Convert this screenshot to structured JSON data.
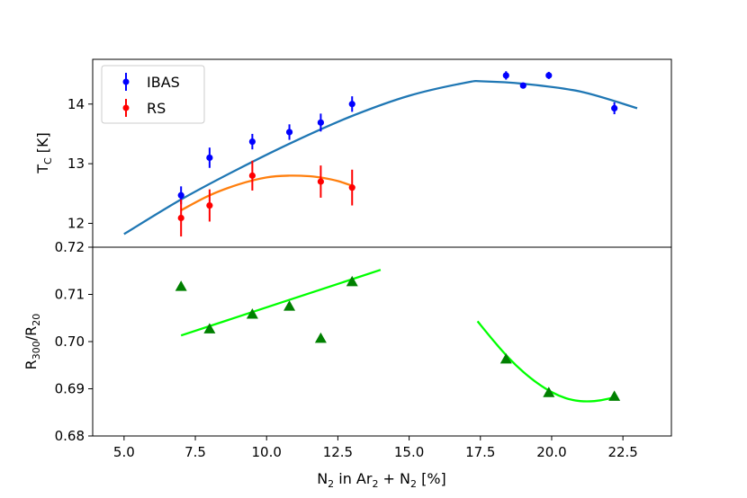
{
  "chart_data": [
    {
      "type": "scatter",
      "panel": "top",
      "ylabel": "T_C [K]",
      "ylabel_main": "T",
      "ylabel_sub": "C",
      "ylabel_unit": " [K]",
      "xlim": [
        3.9,
        24.2
      ],
      "ylim": [
        11.6,
        14.75
      ],
      "yticks": [
        12,
        13,
        14
      ],
      "ytick_labels": [
        "12",
        "13",
        "14"
      ],
      "legend": {
        "position": "top-left",
        "entries": [
          "IBAS",
          "RS"
        ]
      },
      "series": [
        {
          "name": "IBAS",
          "color": "#0000ff",
          "marker": "circle",
          "x": [
            7.0,
            8.0,
            9.5,
            10.8,
            11.9,
            13.0,
            18.4,
            19.0,
            19.9,
            22.2
          ],
          "y": [
            12.47,
            13.1,
            13.37,
            13.53,
            13.69,
            14.0,
            14.48,
            14.31,
            14.48,
            13.93
          ],
          "yerr": [
            0.15,
            0.17,
            0.13,
            0.13,
            0.15,
            0.13,
            0.07,
            0.05,
            0.06,
            0.1
          ]
        },
        {
          "name": "RS",
          "color": "#ff0000",
          "marker": "circle",
          "x": [
            7.0,
            8.0,
            9.5,
            11.9,
            13.0
          ],
          "y": [
            12.09,
            12.3,
            12.8,
            12.7,
            12.6
          ],
          "yerr": [
            0.31,
            0.27,
            0.25,
            0.27,
            0.3
          ]
        }
      ],
      "fits": [
        {
          "name": "IBAS fit",
          "color": "#1f77b4",
          "x": [
            5.0,
            7.0,
            9.0,
            11.0,
            13.0,
            15.0,
            17.0,
            17.6,
            19.0,
            21.0,
            23.0
          ],
          "y": [
            11.82,
            12.4,
            12.91,
            13.38,
            13.8,
            14.14,
            14.36,
            14.38,
            14.34,
            14.21,
            13.93
          ]
        },
        {
          "name": "RS fit",
          "color": "#ff7f0e",
          "x": [
            7.0,
            8.0,
            9.0,
            10.0,
            10.8,
            11.5,
            12.0,
            12.5,
            13.0
          ],
          "y": [
            12.22,
            12.47,
            12.65,
            12.77,
            12.8,
            12.79,
            12.76,
            12.71,
            12.63
          ]
        }
      ]
    },
    {
      "type": "scatter",
      "panel": "bottom",
      "xlabel": "N2 in Ar2 + N2 [%]",
      "ylabel": "R300/R20",
      "ylabel_parts": [
        "R",
        "300",
        "/R",
        "20"
      ],
      "xlabel_parts": [
        "N",
        "2",
        " in Ar",
        "2",
        " + N",
        "2",
        " [%]"
      ],
      "xlim": [
        3.9,
        24.2
      ],
      "ylim": [
        0.68,
        0.72
      ],
      "xticks": [
        5.0,
        7.5,
        10.0,
        12.5,
        15.0,
        17.5,
        20.0,
        22.5
      ],
      "xtick_labels": [
        "5.0",
        "7.5",
        "10.0",
        "12.5",
        "15.0",
        "17.5",
        "20.0",
        "22.5"
      ],
      "yticks": [
        0.68,
        0.69,
        0.7,
        0.71,
        0.72
      ],
      "ytick_labels": [
        "0.68",
        "0.69",
        "0.70",
        "0.71",
        "0.72"
      ],
      "series": [
        {
          "name": "R300/R20",
          "color": "#008000",
          "marker": "triangle",
          "x": [
            7.0,
            8.0,
            9.5,
            10.8,
            11.9,
            13.0,
            18.4,
            19.9,
            22.2
          ],
          "y": [
            0.7117,
            0.7027,
            0.7058,
            0.7075,
            0.7007,
            0.7127,
            0.6963,
            0.6892,
            0.6884
          ]
        }
      ],
      "fits": [
        {
          "name": "linear fit",
          "color": "#00ff00",
          "x": [
            7.0,
            14.0
          ],
          "y": [
            0.7013,
            0.7152
          ]
        },
        {
          "name": "quadratic fit",
          "color": "#00ff00",
          "x": [
            17.4,
            18.0,
            18.5,
            19.0,
            19.5,
            20.0,
            20.5,
            21.0,
            21.5,
            22.0,
            22.3
          ],
          "y": [
            0.7043,
            0.6999,
            0.6965,
            0.6936,
            0.6912,
            0.6893,
            0.688,
            0.6874,
            0.6874,
            0.6879,
            0.6885
          ]
        }
      ]
    }
  ]
}
